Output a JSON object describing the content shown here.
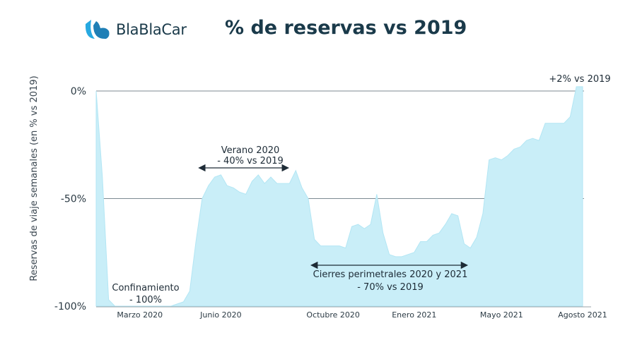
{
  "brand": {
    "name": "BlaBlaCar",
    "logo_icon": "blablacar-logo-icon",
    "color": "#27a9e1"
  },
  "chart_data": {
    "type": "area",
    "title": "% de reservas vs 2019",
    "ylabel": "Reservas de viaje semanales (en % vs 2019)",
    "xlabel": "",
    "ylim": [
      -100,
      2
    ],
    "y_ticks": [
      {
        "value": 0,
        "label": "0%"
      },
      {
        "value": -50,
        "label": "-50%"
      },
      {
        "value": -100,
        "label": "-100%"
      }
    ],
    "x_ticks": [
      {
        "week": 7,
        "label": "Marzo 2020"
      },
      {
        "week": 20,
        "label": "Junio 2020"
      },
      {
        "week": 38,
        "label": "Octubre 2020"
      },
      {
        "week": 51,
        "label": "Enero 2021"
      },
      {
        "week": 65,
        "label": "Mayo 2021"
      },
      {
        "week": 78,
        "label": "Agosto 2021"
      }
    ],
    "gridlines": [
      0,
      -50
    ],
    "series": [
      {
        "color": "#c9eef8",
        "points": [
          [
            0,
            0
          ],
          [
            1,
            -40
          ],
          [
            2,
            -97
          ],
          [
            3,
            -100
          ],
          [
            4,
            -100
          ],
          [
            5,
            -100
          ],
          [
            6,
            -100
          ],
          [
            7,
            -100
          ],
          [
            8,
            -100
          ],
          [
            9,
            -100
          ],
          [
            10,
            -100
          ],
          [
            11,
            -100
          ],
          [
            12,
            -100
          ],
          [
            13,
            -99
          ],
          [
            14,
            -98
          ],
          [
            15,
            -93
          ],
          [
            16,
            -70
          ],
          [
            17,
            -50
          ],
          [
            18,
            -44
          ],
          [
            19,
            -40
          ],
          [
            20,
            -39
          ],
          [
            21,
            -44
          ],
          [
            22,
            -45
          ],
          [
            23,
            -47
          ],
          [
            24,
            -48
          ],
          [
            25,
            -42
          ],
          [
            26,
            -39
          ],
          [
            27,
            -43
          ],
          [
            28,
            -40
          ],
          [
            29,
            -43
          ],
          [
            30,
            -43
          ],
          [
            31,
            -43
          ],
          [
            32,
            -37
          ],
          [
            33,
            -45
          ],
          [
            34,
            -50
          ],
          [
            35,
            -69
          ],
          [
            36,
            -72
          ],
          [
            37,
            -72
          ],
          [
            38,
            -72
          ],
          [
            39,
            -72
          ],
          [
            40,
            -73
          ],
          [
            41,
            -63
          ],
          [
            42,
            -62
          ],
          [
            43,
            -64
          ],
          [
            44,
            -62
          ],
          [
            45,
            -48
          ],
          [
            46,
            -66
          ],
          [
            47,
            -76
          ],
          [
            48,
            -77
          ],
          [
            49,
            -77
          ],
          [
            50,
            -76
          ],
          [
            51,
            -75
          ],
          [
            52,
            -70
          ],
          [
            53,
            -70
          ],
          [
            54,
            -67
          ],
          [
            55,
            -66
          ],
          [
            56,
            -62
          ],
          [
            57,
            -57
          ],
          [
            58,
            -58
          ],
          [
            59,
            -71
          ],
          [
            60,
            -73
          ],
          [
            61,
            -68
          ],
          [
            62,
            -57
          ],
          [
            63,
            -32
          ],
          [
            64,
            -31
          ],
          [
            65,
            -32
          ],
          [
            66,
            -30
          ],
          [
            67,
            -27
          ],
          [
            68,
            -26
          ],
          [
            69,
            -23
          ],
          [
            70,
            -22
          ],
          [
            71,
            -23
          ],
          [
            72,
            -15
          ],
          [
            73,
            -15
          ],
          [
            74,
            -15
          ],
          [
            75,
            -15
          ],
          [
            76,
            -12
          ],
          [
            77,
            2
          ],
          [
            78,
            2
          ]
        ]
      }
    ],
    "annotations": [
      {
        "id": "confinamiento",
        "lines": [
          "Confinamiento",
          "- 100%"
        ]
      },
      {
        "id": "verano",
        "lines": [
          "Verano 2020",
          "- 40% vs 2019"
        ],
        "arrow_from_week": 16.5,
        "arrow_to_week": 30.8
      },
      {
        "id": "cierres",
        "lines": [
          "Cierres perimetrales 2020 y 2021",
          "- 70% vs 2019"
        ],
        "arrow_from_week": 34.5,
        "arrow_to_week": 59.5
      },
      {
        "id": "peak",
        "lines": [
          "+2% vs 2019"
        ]
      }
    ]
  }
}
